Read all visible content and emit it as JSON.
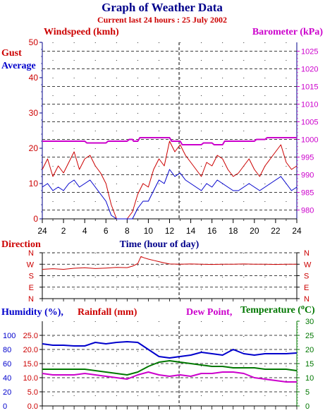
{
  "header": {
    "title": "Graph of Weather Data",
    "subtitle": "Current last 24 hours : 25 July 2002"
  },
  "colors": {
    "navy": "#00008b",
    "red": "#cc0000",
    "magenta": "#cc00cc",
    "green": "#007700",
    "blue": "#0000cc"
  },
  "chart_data": [
    {
      "type": "line",
      "name": "wind-barometer",
      "labels": {
        "left": "Windspeed (kmh)",
        "right": "Barometer (kPa)",
        "gust": "Gust",
        "average": "Average",
        "xlabel": "Time (hour of day)"
      },
      "x_ticks": [
        "24",
        "2",
        "4",
        "6",
        "8",
        "10",
        "12",
        "14",
        "16",
        "18",
        "20",
        "22",
        "24"
      ],
      "x_range": [
        0,
        24
      ],
      "y_left_ticks": [
        "0",
        "10",
        "20",
        "30",
        "40",
        "50"
      ],
      "y_left_range": [
        0,
        50
      ],
      "y_right_ticks": [
        "980",
        "985",
        "990",
        "995",
        "1000",
        "1005",
        "1010",
        "1015",
        "1020",
        "1025"
      ],
      "y_right_range": [
        977.5,
        1027.5
      ],
      "series": [
        {
          "name": "Gust",
          "axis": "left",
          "x": [
            0,
            0.5,
            1,
            1.5,
            2,
            2.5,
            3,
            3.5,
            4,
            4.5,
            5,
            5.5,
            6,
            6.5,
            7,
            7.5,
            8,
            8.5,
            9,
            9.5,
            10,
            10.5,
            11,
            11.5,
            12,
            12.5,
            13,
            13.5,
            14,
            14.5,
            15,
            15.5,
            16,
            16.5,
            17,
            17.5,
            18,
            18.5,
            19,
            19.5,
            20,
            20.5,
            21,
            21.5,
            22,
            22.5,
            23,
            23.5,
            24
          ],
          "values": [
            14,
            17,
            12,
            15,
            13,
            16,
            19,
            14,
            17,
            18,
            15,
            13,
            10,
            4,
            0,
            0,
            0,
            2,
            7,
            10,
            9,
            14,
            17,
            15,
            22,
            19,
            21,
            18,
            16,
            14,
            12,
            16,
            15,
            18,
            17,
            14,
            12,
            13,
            15,
            17,
            14,
            12,
            15,
            17,
            19,
            21,
            16,
            14,
            15
          ]
        },
        {
          "name": "Average",
          "axis": "left",
          "x": [
            0,
            0.5,
            1,
            1.5,
            2,
            2.5,
            3,
            3.5,
            4,
            4.5,
            5,
            5.5,
            6,
            6.5,
            7,
            7.5,
            8,
            8.5,
            9,
            9.5,
            10,
            10.5,
            11,
            11.5,
            12,
            12.5,
            13,
            13.5,
            14,
            14.5,
            15,
            15.5,
            16,
            16.5,
            17,
            17.5,
            18,
            18.5,
            19,
            19.5,
            20,
            20.5,
            21,
            21.5,
            22,
            22.5,
            23,
            23.5,
            24
          ],
          "values": [
            9,
            10,
            8,
            9,
            8,
            10,
            11,
            9,
            10,
            11,
            9,
            7,
            5,
            1,
            0,
            0,
            0,
            0,
            3,
            5,
            5,
            8,
            11,
            10,
            14,
            12,
            13,
            11,
            10,
            9,
            8,
            10,
            9,
            11,
            10,
            9,
            8,
            8,
            9,
            10,
            9,
            8,
            9,
            10,
            11,
            12,
            10,
            8,
            9
          ]
        },
        {
          "name": "Barometer",
          "axis": "right",
          "x": [
            0,
            3,
            4,
            4.2,
            6,
            6.2,
            8,
            8.2,
            8.5,
            8.6,
            9,
            9.2,
            12,
            12.2,
            13,
            13.2,
            15,
            15.2,
            16,
            16.2,
            17,
            17.2,
            20,
            20.2,
            21,
            21.2,
            24
          ],
          "values": [
            999.5,
            999.5,
            999.5,
            999,
            999,
            999.5,
            999.5,
            1000,
            1000,
            999.5,
            999.5,
            1000.5,
            1000.5,
            999.5,
            999.5,
            998.5,
            998.5,
            999,
            999,
            998.5,
            998.5,
            999.5,
            999.5,
            1000,
            1000,
            1000.5,
            1000.5
          ]
        }
      ]
    },
    {
      "type": "line",
      "name": "wind-direction",
      "labels": {
        "title": "Direction"
      },
      "y_ticks": [
        "N",
        "W",
        "S",
        "E",
        "N"
      ],
      "x_range": [
        0,
        24
      ],
      "series": [
        {
          "name": "Direction",
          "x": [
            0,
            1,
            2,
            3,
            4,
            5,
            6,
            7,
            8,
            8.5,
            9,
            9.3,
            9.6,
            10,
            10.5,
            11,
            11.5,
            12,
            13,
            14,
            15,
            16,
            17,
            18,
            19,
            20,
            21,
            22,
            23,
            24
          ],
          "values": [
            230,
            235,
            230,
            238,
            242,
            236,
            240,
            245,
            243,
            255,
            275,
            330,
            320,
            310,
            300,
            290,
            280,
            272,
            270,
            272,
            270,
            268,
            270,
            270,
            272,
            270,
            270,
            268,
            270,
            270
          ]
        }
      ]
    },
    {
      "type": "line",
      "name": "humidity-rain-temperature",
      "labels": {
        "humidity": "Humidity (%),",
        "rainfall": "Rainfall (mm)",
        "dewpoint": "Dew Point,",
        "temperature": "Temperature (",
        "temperature_unit": "o",
        "temperature_unit_tail": "C)"
      },
      "humidity_ticks": [
        "0",
        "20",
        "40",
        "60",
        "80",
        "100"
      ],
      "rainfall_ticks": [
        "0.0",
        "5.0",
        "10.0",
        "15.0",
        "20.0",
        "25.0"
      ],
      "temperature_ticks": [
        "0",
        "5",
        "10",
        "15",
        "20",
        "25",
        "30"
      ],
      "humidity_range": [
        0,
        120
      ],
      "temperature_range": [
        0,
        30
      ],
      "series": [
        {
          "name": "Humidity",
          "axis": "humidity",
          "x": [
            0,
            1,
            2,
            3,
            4,
            5,
            6,
            7,
            8,
            9,
            10,
            11,
            12,
            13,
            14,
            15,
            16,
            17,
            18,
            19,
            20,
            21,
            22,
            23,
            24
          ],
          "values": [
            88,
            86,
            86,
            85,
            85,
            90,
            88,
            90,
            91,
            90,
            80,
            70,
            68,
            70,
            72,
            76,
            74,
            72,
            80,
            74,
            72,
            74,
            74,
            74,
            75
          ]
        },
        {
          "name": "Temperature",
          "axis": "temperature",
          "x": [
            0,
            1,
            2,
            3,
            4,
            5,
            6,
            7,
            8,
            9,
            10,
            11,
            12,
            13,
            14,
            15,
            16,
            17,
            18,
            19,
            20,
            21,
            22,
            23,
            24
          ],
          "values": [
            13,
            13,
            13,
            13,
            13,
            12.5,
            12,
            11.5,
            11,
            12,
            14,
            15.5,
            16,
            15.5,
            15,
            14.5,
            14,
            14,
            13.5,
            13.5,
            13.5,
            13,
            13,
            13,
            12.5
          ]
        },
        {
          "name": "Dew Point",
          "axis": "temperature",
          "x": [
            0,
            1,
            2,
            3,
            4,
            5,
            6,
            7,
            8,
            9,
            10,
            11,
            12,
            13,
            14,
            15,
            16,
            17,
            18,
            19,
            20,
            21,
            22,
            23,
            24
          ],
          "values": [
            11.5,
            11,
            11,
            11,
            11.5,
            11,
            10.5,
            10,
            9.5,
            11,
            12,
            11,
            10.5,
            11,
            10.5,
            11.5,
            11.5,
            12,
            12,
            11.5,
            10,
            9.5,
            9,
            8.5,
            8.5
          ]
        }
      ]
    }
  ]
}
